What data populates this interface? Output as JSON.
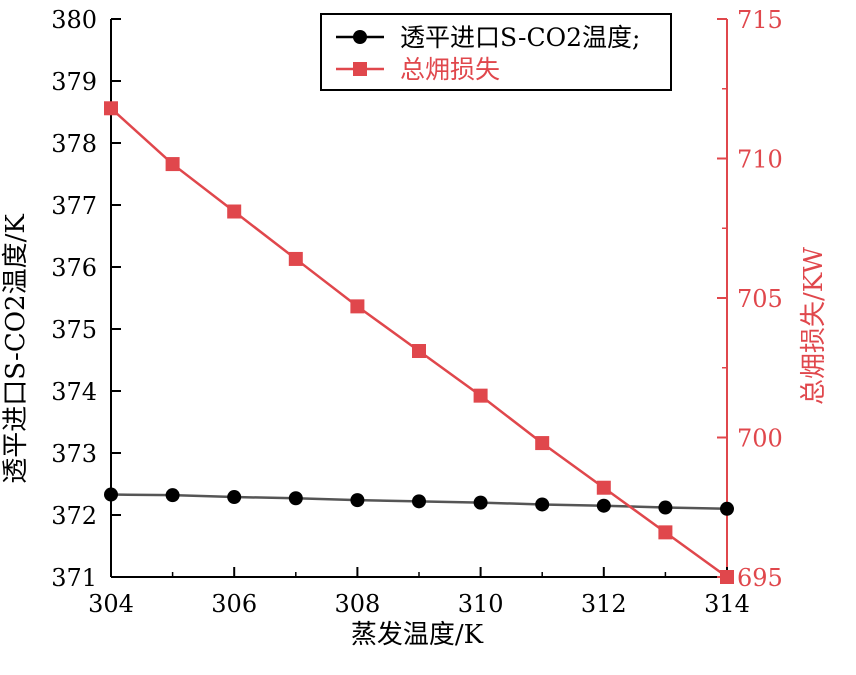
{
  "chart_data": {
    "type": "line",
    "xlabel": "蒸发温度/K",
    "ylabel_left": "透平进口S-CO2温度/K",
    "ylabel_right": "总㶲损失/KW",
    "xlim": [
      304,
      314
    ],
    "ylim_left": [
      371,
      380
    ],
    "ylim_right": [
      695,
      715
    ],
    "x_ticks": [
      "304",
      "306",
      "308",
      "310",
      "312",
      "314"
    ],
    "x_tick_values": [
      304,
      306,
      308,
      310,
      312,
      314
    ],
    "y_left_ticks": [
      "371",
      "372",
      "373",
      "374",
      "375",
      "376",
      "377",
      "378",
      "379",
      "380"
    ],
    "y_left_tick_values": [
      371,
      372,
      373,
      374,
      375,
      376,
      377,
      378,
      379,
      380
    ],
    "y_right_ticks": [
      "695",
      "700",
      "705",
      "710",
      "715"
    ],
    "y_right_tick_values": [
      695,
      700,
      705,
      710,
      715
    ],
    "x": [
      304,
      305,
      306,
      307,
      308,
      309,
      310,
      311,
      312,
      313,
      314
    ],
    "series": [
      {
        "name": "透平进口S-CO2温度;",
        "axis": "left",
        "color": "#000000",
        "line_color": "#555555",
        "marker": "circle",
        "values": [
          372.33,
          372.32,
          372.29,
          372.27,
          372.24,
          372.22,
          372.2,
          372.17,
          372.15,
          372.12,
          372.1
        ]
      },
      {
        "name": "总㶲损失",
        "axis": "right",
        "color": "#e0474c",
        "line_color": "#e0474c",
        "marker": "square",
        "values": [
          711.8,
          709.8,
          708.1,
          706.4,
          704.7,
          703.1,
          701.5,
          699.8,
          698.2,
          696.6,
          695.0
        ]
      }
    ],
    "legend_position": "top-right",
    "grid": false
  }
}
